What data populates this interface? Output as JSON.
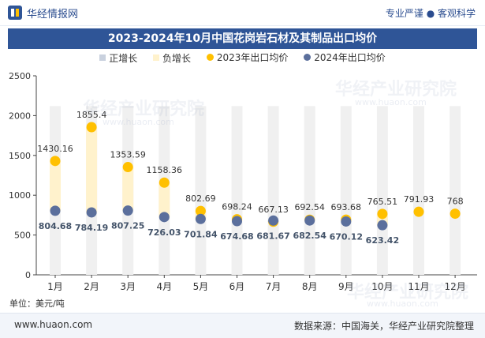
{
  "header": {
    "brand": "华经情报网",
    "tagline": "专业严谨 ● 客观科学"
  },
  "chart_data": {
    "type": "line",
    "title": "2023-2024年10月中国花岗岩石材及其制品出口均价",
    "categories": [
      "1月",
      "2月",
      "3月",
      "4月",
      "5月",
      "6月",
      "7月",
      "8月",
      "9月",
      "10月",
      "11月",
      "12月"
    ],
    "series": [
      {
        "name": "2023年出口均价",
        "values": [
          1430.16,
          1855.4,
          1353.59,
          1158.36,
          802.69,
          698.24,
          667.13,
          692.54,
          693.68,
          765.51,
          791.93,
          768
        ],
        "color": "#ffc000"
      },
      {
        "name": "2024年出口均价",
        "values": [
          804.68,
          784.19,
          807.25,
          726.03,
          701.84,
          674.68,
          681.67,
          682.54,
          670.12,
          623.42,
          null,
          null
        ],
        "color": "#5b6f9c"
      }
    ],
    "legend": [
      {
        "label": "正增长",
        "color": "#c9d1de",
        "type": "bar"
      },
      {
        "label": "负增长",
        "color": "#fff2cc",
        "type": "bar"
      },
      {
        "label": "2023年出口均价",
        "color": "#ffc000",
        "type": "dot"
      },
      {
        "label": "2024年出口均价",
        "color": "#5b6f9c",
        "type": "dot"
      }
    ],
    "yticks": [
      0,
      500,
      1000,
      1500,
      2000,
      2500
    ],
    "ylim": [
      0,
      2500
    ],
    "ylabel": "单位：美元/吨"
  },
  "watermark": {
    "text": "华经产业研究院",
    "sub": "www.huaon.com"
  },
  "footer": {
    "site": "www.huaon.com",
    "source": "数据来源：中国海关，华经产业研究院整理"
  },
  "colors": {
    "title_bg": "#2f5597",
    "track": "#f0f0f0",
    "neg_bar": "#fff2cc",
    "pos_bar": "#c9d1de"
  }
}
